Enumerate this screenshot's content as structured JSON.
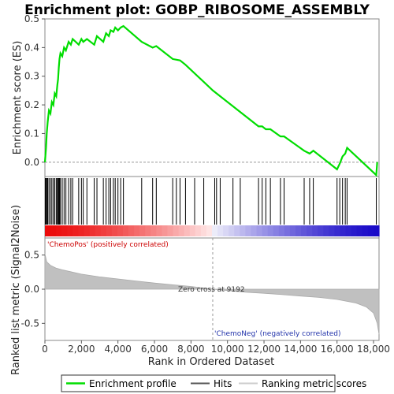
{
  "chart_data": {
    "type": "line",
    "title": "Enrichment plot: GOBP_RIBOSOME_ASSEMBLY",
    "top_panel": {
      "ylabel": "Enrichment score (ES)",
      "ylim": [
        -0.05,
        0.5
      ],
      "yticks": [
        "0.0",
        "0.1",
        "0.2",
        "0.3",
        "0.4",
        "0.5"
      ],
      "ytick_values": [
        0.0,
        0.1,
        0.2,
        0.3,
        0.4,
        0.5
      ],
      "series_name": "Enrichment profile",
      "color": "#00dd00",
      "points": [
        [
          0,
          0.0
        ],
        [
          60,
          0.05
        ],
        [
          100,
          0.1
        ],
        [
          150,
          0.14
        ],
        [
          220,
          0.18
        ],
        [
          300,
          0.17
        ],
        [
          380,
          0.21
        ],
        [
          460,
          0.2
        ],
        [
          540,
          0.24
        ],
        [
          620,
          0.23
        ],
        [
          680,
          0.27
        ],
        [
          720,
          0.29
        ],
        [
          760,
          0.33
        ],
        [
          800,
          0.36
        ],
        [
          850,
          0.38
        ],
        [
          950,
          0.37
        ],
        [
          1050,
          0.4
        ],
        [
          1150,
          0.39
        ],
        [
          1300,
          0.42
        ],
        [
          1420,
          0.41
        ],
        [
          1520,
          0.43
        ],
        [
          1850,
          0.41
        ],
        [
          2000,
          0.43
        ],
        [
          2100,
          0.42
        ],
        [
          2300,
          0.43
        ],
        [
          2700,
          0.41
        ],
        [
          2850,
          0.44
        ],
        [
          3200,
          0.42
        ],
        [
          3350,
          0.45
        ],
        [
          3500,
          0.44
        ],
        [
          3600,
          0.46
        ],
        [
          3750,
          0.455
        ],
        [
          3850,
          0.47
        ],
        [
          4000,
          0.46
        ],
        [
          4150,
          0.47
        ],
        [
          4300,
          0.475
        ],
        [
          5300,
          0.42
        ],
        [
          5900,
          0.4
        ],
        [
          6100,
          0.405
        ],
        [
          7000,
          0.36
        ],
        [
          7400,
          0.355
        ],
        [
          7700,
          0.34
        ],
        [
          9200,
          0.25
        ],
        [
          11700,
          0.125
        ],
        [
          11900,
          0.125
        ],
        [
          12100,
          0.115
        ],
        [
          12350,
          0.115
        ],
        [
          12900,
          0.09
        ],
        [
          13100,
          0.09
        ],
        [
          14200,
          0.04
        ],
        [
          14500,
          0.03
        ],
        [
          14700,
          0.04
        ],
        [
          15500,
          0.0
        ],
        [
          16000,
          -0.025
        ],
        [
          16150,
          -0.005
        ],
        [
          16300,
          0.02
        ],
        [
          16450,
          0.03
        ],
        [
          16550,
          0.05
        ],
        [
          18150,
          -0.045
        ],
        [
          18200,
          0.0
        ]
      ]
    },
    "hits": [
      20,
      60,
      100,
      150,
      220,
      300,
      380,
      460,
      540,
      620,
      680,
      720,
      760,
      800,
      850,
      950,
      1050,
      1150,
      1300,
      1420,
      1520,
      1850,
      2000,
      2100,
      2300,
      2700,
      2850,
      3200,
      3350,
      3500,
      3600,
      3750,
      3850,
      4000,
      4150,
      4300,
      5300,
      5900,
      6100,
      7000,
      7200,
      7400,
      7700,
      8200,
      8700,
      9300,
      9400,
      9600,
      10300,
      10700,
      11700,
      11900,
      12100,
      12350,
      12900,
      13100,
      14200,
      14500,
      14700,
      16000,
      16150,
      16300,
      16450,
      16550,
      18150
    ],
    "bottom_panel": {
      "ylabel": "Ranked list metric (Signal2Noise)",
      "ylim": [
        -0.75,
        0.75
      ],
      "yticks": [
        "0.5",
        "0.0",
        "-0.5"
      ],
      "ytick_values": [
        0.5,
        0.0,
        -0.5
      ],
      "series_name": "Ranking metric scores",
      "metric_curve": [
        [
          0,
          0.52
        ],
        [
          100,
          0.4
        ],
        [
          300,
          0.35
        ],
        [
          600,
          0.31
        ],
        [
          1000,
          0.28
        ],
        [
          2000,
          0.22
        ],
        [
          3000,
          0.18
        ],
        [
          4000,
          0.15
        ],
        [
          5000,
          0.12
        ],
        [
          6000,
          0.09
        ],
        [
          7000,
          0.065
        ],
        [
          8000,
          0.04
        ],
        [
          9192,
          0.0
        ],
        [
          10000,
          -0.02
        ],
        [
          11000,
          -0.045
        ],
        [
          12000,
          -0.06
        ],
        [
          13000,
          -0.08
        ],
        [
          14000,
          -0.1
        ],
        [
          15000,
          -0.12
        ],
        [
          16000,
          -0.15
        ],
        [
          17000,
          -0.2
        ],
        [
          17600,
          -0.26
        ],
        [
          18000,
          -0.35
        ],
        [
          18200,
          -0.5
        ],
        [
          18300,
          -0.66
        ]
      ],
      "zero_cross_label": "Zero cross at 9192",
      "zero_cross": 9192,
      "pos_label": "'ChemoPos' (positively correlated)",
      "neg_label": "'ChemoNeg' (negatively correlated)"
    },
    "xlabel": "Rank in Ordered Dataset",
    "xlim": [
      0,
      18300
    ],
    "xticks": [
      "0",
      "2,000",
      "4,000",
      "6,000",
      "8,000",
      "10,000",
      "12,000",
      "14,000",
      "16,000",
      "18,000"
    ],
    "xtick_values": [
      0,
      2000,
      4000,
      6000,
      8000,
      10000,
      12000,
      14000,
      16000,
      18000
    ],
    "legend": [
      {
        "label": "Enrichment profile",
        "color": "#00dd00"
      },
      {
        "label": "Hits",
        "color": "#555555"
      },
      {
        "label": "Ranking metric scores",
        "color": "#cccccc"
      }
    ],
    "legend_position": "bottom"
  }
}
